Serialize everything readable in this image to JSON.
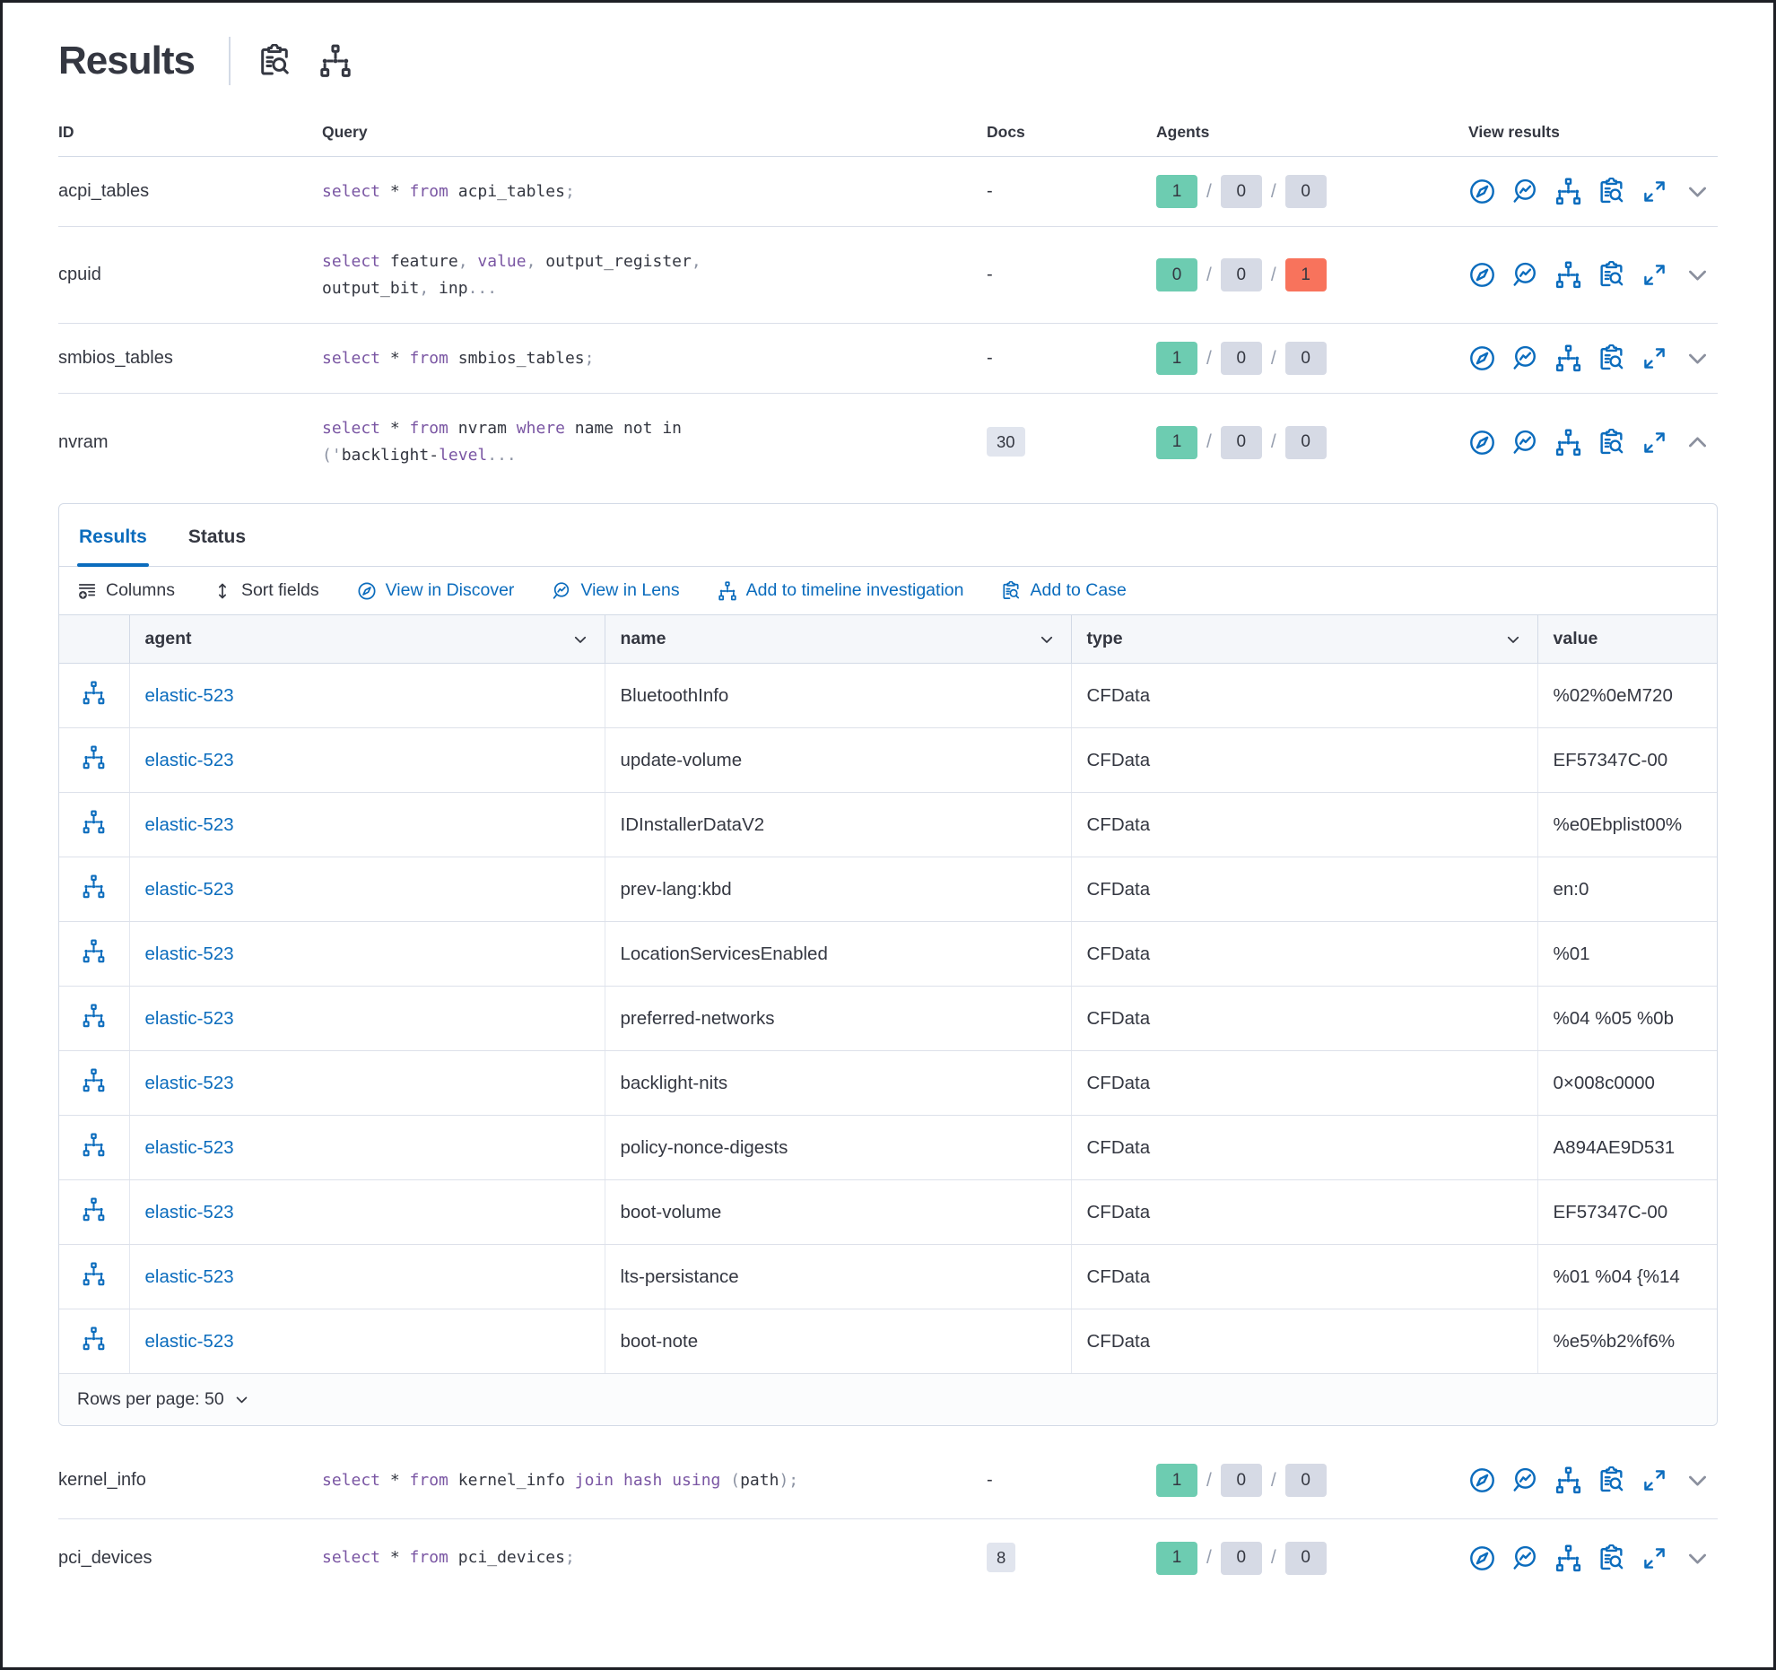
{
  "page": {
    "title": "Results"
  },
  "title_icons": {
    "inspect": "inspect-icon",
    "node_tree": "node-tree-icon"
  },
  "results_table": {
    "headers": {
      "id": "ID",
      "query": "Query",
      "docs": "Docs",
      "agents": "Agents",
      "view_results": "View results"
    },
    "rows": [
      {
        "id": "acpi_tables",
        "docs": "-",
        "query_tokens": [
          [
            "k",
            "select"
          ],
          [
            "t",
            " * "
          ],
          [
            "k",
            "from"
          ],
          [
            "t",
            " acpi_tables"
          ],
          [
            "p",
            ";"
          ]
        ],
        "agents": [
          {
            "value": "1",
            "status": "success"
          },
          {
            "value": "0",
            "status": "not-sent"
          },
          {
            "value": "0",
            "status": "failed"
          }
        ]
      },
      {
        "id": "cpuid",
        "docs": "-",
        "query_tokens": [
          [
            "k",
            "select"
          ],
          [
            "t",
            " feature"
          ],
          [
            "p",
            ","
          ],
          [
            "t",
            " "
          ],
          [
            "k",
            "value"
          ],
          [
            "p",
            ","
          ],
          [
            "t",
            " output_register"
          ],
          [
            "p",
            ","
          ],
          [
            "br",
            ""
          ],
          [
            "t",
            "output_bit"
          ],
          [
            "p",
            ","
          ],
          [
            "t",
            " inp"
          ],
          [
            "p",
            "..."
          ]
        ],
        "agents": [
          {
            "value": "0",
            "status": "success"
          },
          {
            "value": "0",
            "status": "not-sent"
          },
          {
            "value": "1",
            "status": "failed"
          }
        ]
      },
      {
        "id": "smbios_tables",
        "docs": "-",
        "query_tokens": [
          [
            "k",
            "select"
          ],
          [
            "t",
            " * "
          ],
          [
            "k",
            "from"
          ],
          [
            "t",
            " smbios_tables"
          ],
          [
            "p",
            ";"
          ]
        ],
        "agents": [
          {
            "value": "1",
            "status": "success"
          },
          {
            "value": "0",
            "status": "not-sent"
          },
          {
            "value": "0",
            "status": "failed"
          }
        ]
      },
      {
        "id": "nvram",
        "docs": "30",
        "query_tokens": [
          [
            "k",
            "select"
          ],
          [
            "t",
            " * "
          ],
          [
            "k",
            "from"
          ],
          [
            "t",
            " nvram "
          ],
          [
            "k",
            "where"
          ],
          [
            "t",
            " name not in"
          ],
          [
            "br",
            ""
          ],
          [
            "p",
            "('"
          ],
          [
            "t",
            "backlight-"
          ],
          [
            "k",
            "level"
          ],
          [
            "p",
            "..."
          ]
        ],
        "agents": [
          {
            "value": "1",
            "status": "success"
          },
          {
            "value": "0",
            "status": "not-sent"
          },
          {
            "value": "0",
            "status": "failed"
          }
        ]
      },
      {
        "id": "kernel_info",
        "docs": "-",
        "query_tokens": [
          [
            "k",
            "select"
          ],
          [
            "t",
            " * "
          ],
          [
            "k",
            "from"
          ],
          [
            "t",
            " kernel_info "
          ],
          [
            "k",
            "join"
          ],
          [
            "t",
            " "
          ],
          [
            "k",
            "hash"
          ],
          [
            "t",
            " "
          ],
          [
            "k",
            "using"
          ],
          [
            "t",
            " "
          ],
          [
            "p",
            "("
          ],
          [
            "t",
            "path"
          ],
          [
            "p",
            ");"
          ]
        ],
        "agents": [
          {
            "value": "1",
            "status": "success"
          },
          {
            "value": "0",
            "status": "not-sent"
          },
          {
            "value": "0",
            "status": "failed"
          }
        ]
      },
      {
        "id": "pci_devices",
        "docs": "8",
        "query_tokens": [
          [
            "k",
            "select"
          ],
          [
            "t",
            " * "
          ],
          [
            "k",
            "from"
          ],
          [
            "t",
            " pci_devices"
          ],
          [
            "p",
            ";"
          ]
        ],
        "agents": [
          {
            "value": "1",
            "status": "success"
          },
          {
            "value": "0",
            "status": "not-sent"
          },
          {
            "value": "0",
            "status": "failed"
          }
        ]
      }
    ]
  },
  "panel": {
    "tabs": [
      {
        "label": "Results",
        "active": true
      },
      {
        "label": "Status",
        "active": false
      }
    ],
    "toolbar": [
      {
        "label": "Columns"
      },
      {
        "label": "Sort fields"
      },
      {
        "label": "View in Discover"
      },
      {
        "label": "View in Lens"
      },
      {
        "label": "Add to timeline investigation"
      },
      {
        "label": "Add to Case"
      }
    ],
    "grid": {
      "columns": [
        {
          "label": "agent"
        },
        {
          "label": "name"
        },
        {
          "label": "type"
        },
        {
          "label": "value"
        }
      ],
      "rows": [
        {
          "agent": "elastic-523",
          "name": "BluetoothInfo",
          "type": "CFData",
          "value": "%02%0eM720"
        },
        {
          "agent": "elastic-523",
          "name": "update-volume",
          "type": "CFData",
          "value": "EF57347C-00"
        },
        {
          "agent": "elastic-523",
          "name": "IDInstallerDataV2",
          "type": "CFData",
          "value": "%e0Ebplist00%"
        },
        {
          "agent": "elastic-523",
          "name": "prev-lang:kbd",
          "type": "CFData",
          "value": "en:0"
        },
        {
          "agent": "elastic-523",
          "name": "LocationServicesEnabled",
          "type": "CFData",
          "value": "%01"
        },
        {
          "agent": "elastic-523",
          "name": "preferred-networks",
          "type": "CFData",
          "value": "%04 %05 %0b"
        },
        {
          "agent": "elastic-523",
          "name": "backlight-nits",
          "type": "CFData",
          "value": "0×008c0000"
        },
        {
          "agent": "elastic-523",
          "name": "policy-nonce-digests",
          "type": "CFData",
          "value": "A894AE9D531"
        },
        {
          "agent": "elastic-523",
          "name": "boot-volume",
          "type": "CFData",
          "value": "EF57347C-00"
        },
        {
          "agent": "elastic-523",
          "name": "lts-persistance",
          "type": "CFData",
          "value": "%01 %04 {%14"
        },
        {
          "agent": "elastic-523",
          "name": "boot-note",
          "type": "CFData",
          "value": "%e5%b2%f6%"
        }
      ]
    },
    "footer": {
      "rows_per_page": "Rows per page: 50"
    }
  },
  "colors": {
    "success_badge": "#6dccb1",
    "neutral_badge": "#d6dae5",
    "failed_badge": "#f8735c",
    "link_blue": "#0b6cbd",
    "keyword_purple": "#7a56a3",
    "ink": "#343741",
    "border": "#d3dae6"
  }
}
